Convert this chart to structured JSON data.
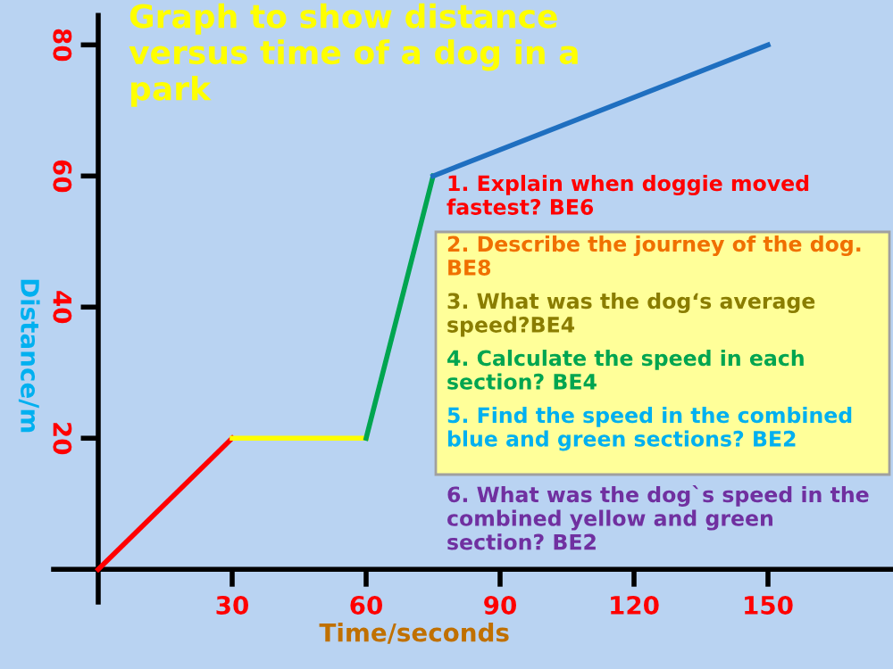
{
  "chart_data": {
    "type": "line",
    "title": "Graph to show distance versus time of a dog in a park",
    "xlabel": "Time/seconds",
    "ylabel": "Distance/m",
    "series": [
      {
        "color": "#ff0000",
        "x": [
          0,
          30
        ],
        "values": [
          0,
          20
        ]
      },
      {
        "color": "#ffff00",
        "x": [
          30,
          60
        ],
        "values": [
          20,
          20
        ]
      },
      {
        "color": "#00a550",
        "x": [
          60,
          75
        ],
        "values": [
          20,
          60
        ]
      },
      {
        "color": "#1f6fc0",
        "x": [
          75,
          150
        ],
        "values": [
          60,
          80
        ]
      }
    ],
    "xlim": [
      -10,
      178
    ],
    "ylim": [
      -5,
      84.5
    ],
    "xticks": [
      30,
      60,
      90,
      120,
      150
    ],
    "yticks": [
      20,
      40,
      60,
      80
    ],
    "grid": false,
    "legend": false,
    "marker": "none",
    "line_style": "solid",
    "annotations": [
      "1. Explain when doggie moved fastest? BE6",
      "2. Describe the journey of the dog. BE8",
      "3. What was the dog‘s average speed?BE4",
      "4. Calculate the speed in each section? BE4",
      "5. Find the speed in the combined blue and green sections? BE2",
      "6. What was the dog`s speed in the combined yellow and green section? BE2"
    ]
  }
}
